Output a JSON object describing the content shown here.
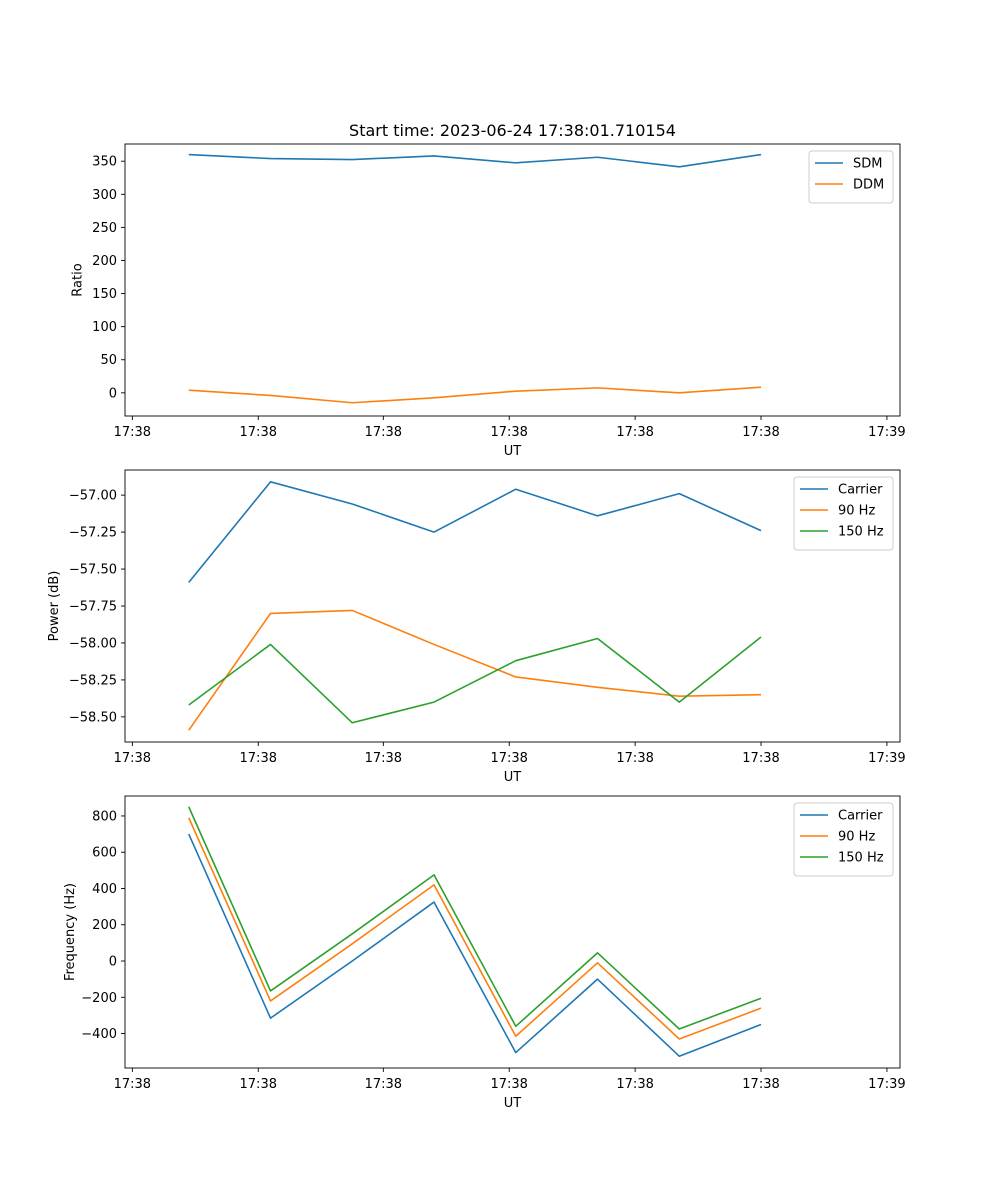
{
  "figure": {
    "title": "Start time: 2023-06-24 17:38:01.710154"
  },
  "chart_data": [
    {
      "type": "line",
      "title": "Start time: 2023-06-24 17:38:01.710154",
      "xlabel": "UT",
      "ylabel": "Ratio",
      "x_tick_labels": [
        "17:38",
        "17:38",
        "17:38",
        "17:38",
        "17:38",
        "17:38",
        "17:39"
      ],
      "y_ticks": [
        0,
        50,
        100,
        150,
        200,
        250,
        300,
        350
      ],
      "y_tick_labels": [
        "0",
        "50",
        "100",
        "150",
        "200",
        "250",
        "300",
        "350"
      ],
      "xlim": [
        -0.78,
        8.7
      ],
      "ylim": [
        -35,
        376
      ],
      "legend": "top-right",
      "grid": false,
      "x": [
        0,
        1,
        2,
        3,
        4,
        5,
        6,
        7
      ],
      "series": [
        {
          "name": "SDM",
          "color": "#1f77b4",
          "values": [
            360,
            354,
            352.5,
            358,
            347.5,
            356,
            341.5,
            360
          ]
        },
        {
          "name": "DDM",
          "color": "#ff7f0e",
          "values": [
            4,
            -4,
            -15,
            -7.5,
            2.5,
            7.5,
            0,
            8.5
          ]
        }
      ]
    },
    {
      "type": "line",
      "title": "",
      "xlabel": "UT",
      "ylabel": "Power (dB)",
      "x_tick_labels": [
        "17:38",
        "17:38",
        "17:38",
        "17:38",
        "17:38",
        "17:38",
        "17:39"
      ],
      "y_ticks": [
        -58.5,
        -58.25,
        -58.0,
        -57.75,
        -57.5,
        -57.25,
        -57.0
      ],
      "y_tick_labels": [
        "−58.50",
        "−58.25",
        "−58.00",
        "−57.75",
        "−57.50",
        "−57.25",
        "−57.00"
      ],
      "xlim": [
        -0.78,
        8.7
      ],
      "ylim": [
        -58.67,
        -56.83
      ],
      "legend": "top-right",
      "grid": false,
      "x": [
        0,
        1,
        2,
        3,
        4,
        5,
        6,
        7
      ],
      "series": [
        {
          "name": "Carrier",
          "color": "#1f77b4",
          "values": [
            -57.59,
            -56.91,
            -57.06,
            -57.25,
            -56.96,
            -57.14,
            -56.99,
            -57.24
          ]
        },
        {
          "name": "90 Hz",
          "color": "#ff7f0e",
          "values": [
            -58.59,
            -57.8,
            -57.78,
            -58.01,
            -58.23,
            -58.3,
            -58.36,
            -58.35
          ]
        },
        {
          "name": "150 Hz",
          "color": "#2ca02c",
          "values": [
            -58.42,
            -58.01,
            -58.54,
            -58.4,
            -58.12,
            -57.97,
            -58.4,
            -57.96
          ]
        }
      ]
    },
    {
      "type": "line",
      "title": "",
      "xlabel": "UT",
      "ylabel": "Frequency (Hz)",
      "x_tick_labels": [
        "17:38",
        "17:38",
        "17:38",
        "17:38",
        "17:38",
        "17:38",
        "17:39"
      ],
      "y_ticks": [
        -400,
        -200,
        0,
        200,
        400,
        600,
        800
      ],
      "y_tick_labels": [
        "−400",
        "−200",
        "0",
        "200",
        "400",
        "600",
        "800"
      ],
      "xlim": [
        -0.78,
        8.7
      ],
      "ylim": [
        -590,
        910
      ],
      "legend": "top-right",
      "grid": false,
      "x": [
        0,
        1,
        2,
        3,
        4,
        5,
        6,
        7
      ],
      "series": [
        {
          "name": "Carrier",
          "color": "#1f77b4",
          "values": [
            700,
            -315,
            0,
            325,
            -505,
            -100,
            -525,
            -350
          ]
        },
        {
          "name": "90 Hz",
          "color": "#ff7f0e",
          "values": [
            790,
            -220,
            95,
            420,
            -415,
            -10,
            -430,
            -260
          ]
        },
        {
          "name": "150 Hz",
          "color": "#2ca02c",
          "values": [
            850,
            -165,
            150,
            475,
            -360,
            45,
            -375,
            -205
          ]
        }
      ]
    }
  ]
}
